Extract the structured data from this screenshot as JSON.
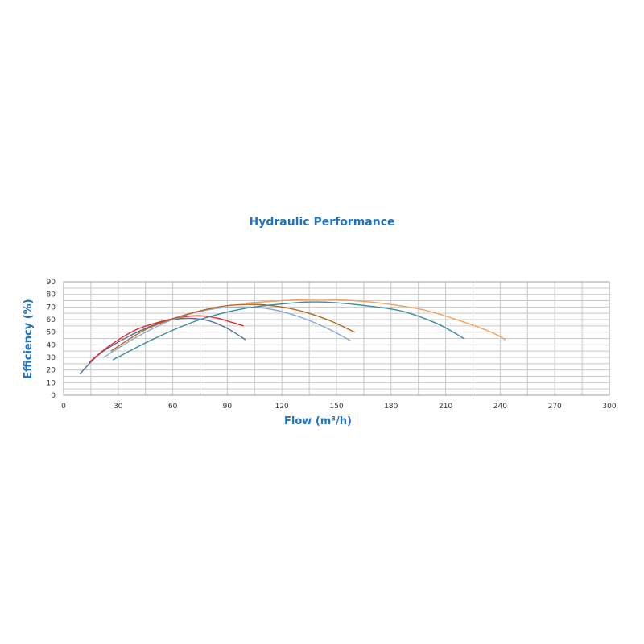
{
  "chart_data": {
    "type": "line",
    "title": "Hydraulic Performance",
    "xlabel": "Flow (m³/h)",
    "ylabel": "Efficiency (%)",
    "xlim": [
      0,
      300
    ],
    "ylim": [
      0,
      90
    ],
    "xticks": [
      0,
      30,
      60,
      90,
      120,
      150,
      180,
      210,
      240,
      270,
      300
    ],
    "yticks": [
      0,
      10,
      20,
      30,
      40,
      50,
      60,
      70,
      80,
      90
    ],
    "grid": true,
    "series": [
      {
        "color": "#5b6f9e",
        "x": [
          9,
          20,
          35,
          50,
          60,
          70,
          80,
          90,
          100
        ],
        "y": [
          17,
          33,
          46,
          56,
          60,
          61,
          59,
          53,
          44
        ]
      },
      {
        "color": "#e02a2a",
        "x": [
          14,
          25,
          40,
          55,
          65,
          75,
          85,
          92,
          99
        ],
        "y": [
          26,
          39,
          52,
          59,
          62,
          63,
          61,
          58,
          55
        ]
      },
      {
        "color": "#8aa9d6",
        "x": [
          22,
          40,
          60,
          80,
          100,
          115,
          130,
          145,
          158
        ],
        "y": [
          30,
          46,
          60,
          68,
          70,
          68,
          62,
          53,
          43
        ]
      },
      {
        "color": "#b5651d",
        "x": [
          26,
          45,
          65,
          85,
          100,
          115,
          130,
          145,
          160
        ],
        "y": [
          35,
          52,
          63,
          70,
          72,
          71,
          67,
          60,
          50
        ]
      },
      {
        "color": "#3a8ca0",
        "x": [
          27,
          50,
          75,
          100,
          125,
          140,
          160,
          185,
          205,
          220
        ],
        "y": [
          28,
          45,
          60,
          69,
          73,
          74,
          72,
          67,
          57,
          45
        ]
      },
      {
        "color": "#f2a25c",
        "x": [
          100,
          120,
          140,
          160,
          180,
          200,
          220,
          235,
          243
        ],
        "y": [
          73,
          75,
          76,
          75,
          72,
          67,
          58,
          50,
          44
        ]
      }
    ]
  }
}
